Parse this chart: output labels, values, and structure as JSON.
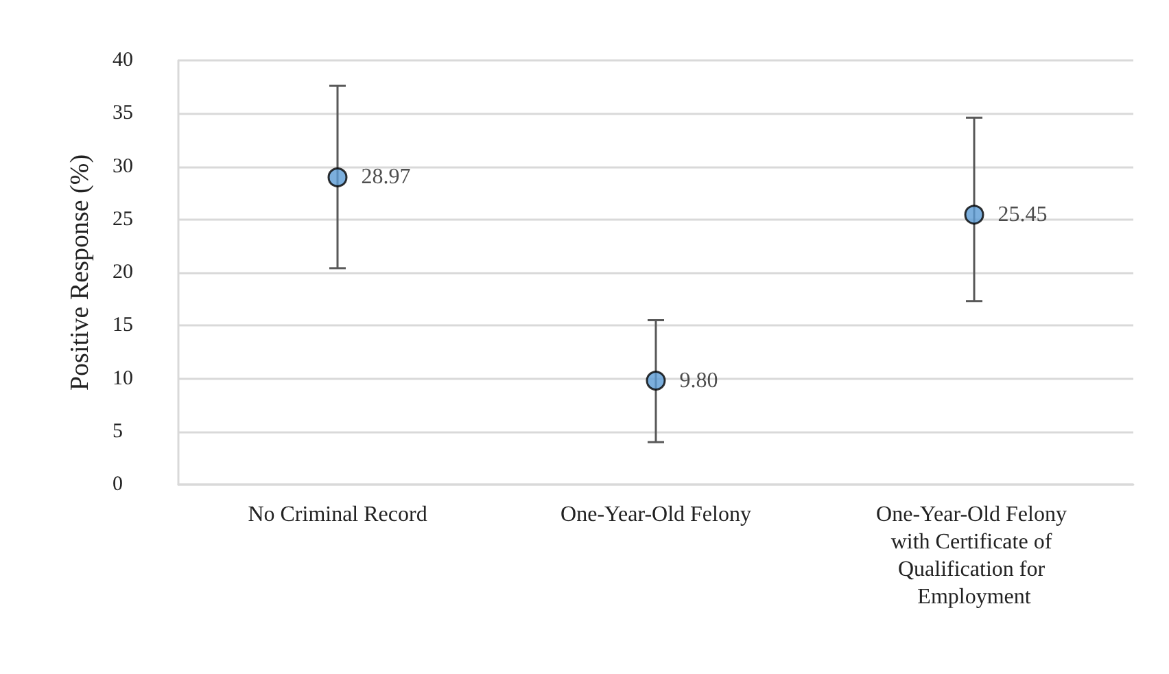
{
  "chart_data": {
    "type": "scatter",
    "ylabel": "Positive Response (%)",
    "categories": [
      "No Criminal Record",
      "One-Year-Old Felony",
      "One-Year-Old Felony with Certificate of Qualification for Employment"
    ],
    "series": [
      {
        "color": "#5b9bd5",
        "values": [
          28.97,
          9.8,
          25.45
        ],
        "errors": [
          [
            20.4,
            37.6
          ],
          [
            4.0,
            15.5
          ],
          [
            17.3,
            34.6
          ]
        ],
        "value_labels": [
          "28.97",
          "9.80",
          "25.45"
        ]
      }
    ],
    "ylim": [
      0,
      40
    ],
    "yticks": [
      0,
      5,
      10,
      15,
      20,
      25,
      30,
      35,
      40
    ],
    "grid": "y",
    "marker": "circle"
  }
}
